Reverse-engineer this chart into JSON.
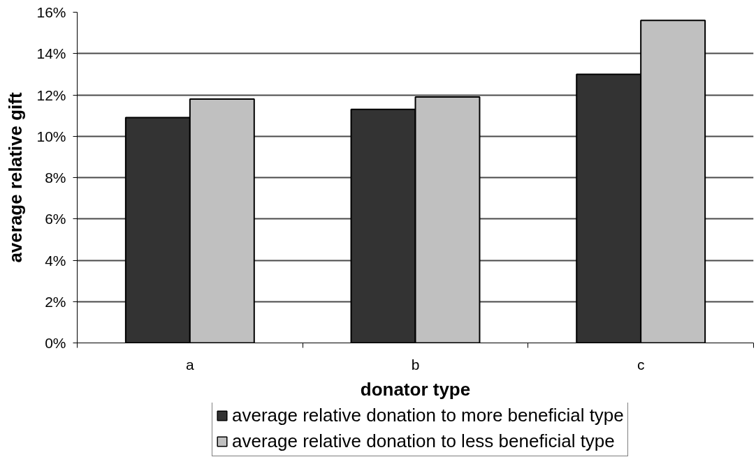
{
  "chart_data": {
    "type": "bar",
    "xlabel": "donator type",
    "ylabel": "average relative gift",
    "categories": [
      "a",
      "b",
      "c"
    ],
    "series": [
      {
        "name": "average relative donation to more beneficial type",
        "color": "#333333",
        "values": [
          10.9,
          11.3,
          13.0
        ]
      },
      {
        "name": "average relative donation to less beneficial type",
        "color": "#c0c0c0",
        "values": [
          11.8,
          11.9,
          15.6
        ]
      }
    ],
    "ylim": [
      0,
      16
    ],
    "yticks": [
      {
        "value": 0,
        "label": "0%"
      },
      {
        "value": 2,
        "label": "2%"
      },
      {
        "value": 4,
        "label": "4%"
      },
      {
        "value": 6,
        "label": "6%"
      },
      {
        "value": 8,
        "label": "8%"
      },
      {
        "value": 10,
        "label": "10%"
      },
      {
        "value": 12,
        "label": "12%"
      },
      {
        "value": 14,
        "label": "14%"
      },
      {
        "value": 16,
        "label": "16%"
      }
    ],
    "grid": "y",
    "legend": "bottom"
  }
}
